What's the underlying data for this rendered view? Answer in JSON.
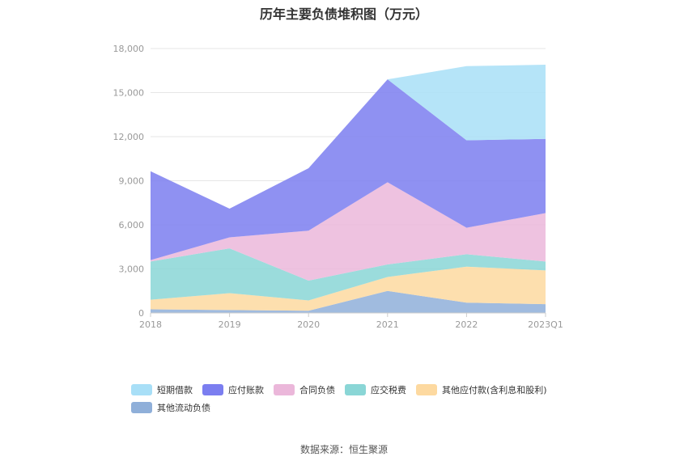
{
  "chart_data": {
    "type": "area",
    "stacked": true,
    "title": "历年主要负债堆积图（万元）",
    "categories": [
      "2018",
      "2019",
      "2020",
      "2021",
      "2022",
      "2023Q1"
    ],
    "ylim": [
      0,
      18000
    ],
    "yticks": [
      "0",
      "3,000",
      "6,000",
      "9,000",
      "12,000",
      "15,000",
      "18,000"
    ],
    "grid": true,
    "legend_position": "bottom",
    "series": [
      {
        "name": "其他流动负债",
        "color": "#8fafd9",
        "values": [
          250,
          200,
          150,
          1500,
          700,
          600
        ]
      },
      {
        "name": "其他应付款(含利息和股利)",
        "color": "#fdd9a0",
        "values": [
          650,
          1150,
          700,
          950,
          2450,
          2300
        ]
      },
      {
        "name": "应交税费",
        "color": "#8ad6d6",
        "values": [
          2600,
          3050,
          1350,
          850,
          850,
          600
        ]
      },
      {
        "name": "合同负债",
        "color": "#ebb7da",
        "values": [
          100,
          750,
          3400,
          5600,
          1800,
          3300
        ]
      },
      {
        "name": "应付账款",
        "color": "#7b7ef0",
        "values": [
          6050,
          1950,
          4250,
          7000,
          5950,
          5050
        ]
      },
      {
        "name": "短期借款",
        "color": "#a8dff7",
        "values": [
          0,
          0,
          0,
          0,
          5050,
          5050
        ]
      }
    ]
  },
  "legend_order": [
    "短期借款",
    "应付账款",
    "合同负债",
    "应交税费",
    "其他应付款(含利息和股利)",
    "其他流动负债"
  ],
  "legend_colors": {
    "短期借款": "#a8dff7",
    "应付账款": "#7b7ef0",
    "合同负债": "#ebb7da",
    "应交税费": "#8ad6d6",
    "其他应付款(含利息和股利)": "#fdd9a0",
    "其他流动负债": "#8fafd9"
  },
  "source_text": "数据来源：恒生聚源"
}
